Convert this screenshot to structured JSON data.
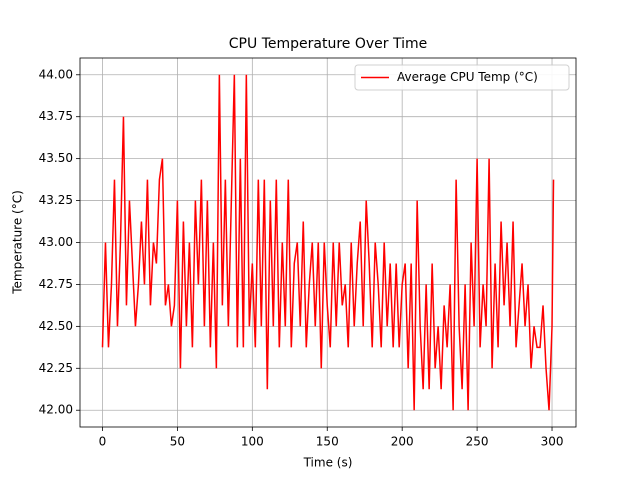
{
  "chart_data": {
    "type": "line",
    "title": "CPU Temperature Over Time",
    "xlabel": "Time (s)",
    "ylabel": "Temperature (°C)",
    "x": [
      0,
      2,
      4,
      6,
      8,
      10,
      12,
      14,
      16,
      18,
      20,
      22,
      24,
      26,
      28,
      30,
      32,
      34,
      36,
      38,
      40,
      42,
      44,
      46,
      48,
      50,
      52,
      54,
      56,
      58,
      60,
      62,
      64,
      66,
      68,
      70,
      72,
      74,
      76,
      78,
      80,
      82,
      84,
      86,
      88,
      90,
      92,
      94,
      96,
      98,
      100,
      102,
      104,
      106,
      108,
      110,
      112,
      114,
      116,
      118,
      120,
      122,
      124,
      126,
      128,
      130,
      132,
      134,
      136,
      138,
      140,
      142,
      144,
      146,
      148,
      150,
      152,
      154,
      156,
      158,
      160,
      162,
      164,
      166,
      168,
      170,
      172,
      174,
      176,
      178,
      180,
      182,
      184,
      186,
      188,
      190,
      192,
      194,
      196,
      198,
      200,
      202,
      204,
      206,
      208,
      210,
      212,
      214,
      216,
      218,
      220,
      222,
      224,
      226,
      228,
      230,
      232,
      234,
      236,
      238,
      240,
      242,
      244,
      246,
      248,
      250,
      252,
      254,
      256,
      258,
      260,
      262,
      264,
      266,
      268,
      270,
      272,
      274,
      276,
      278,
      280,
      282,
      284,
      286,
      288,
      290,
      292,
      294,
      296,
      298,
      300,
      301
    ],
    "series": [
      {
        "name": "Average CPU Temp (°C)",
        "color": "#ff0000",
        "values": [
          42.375,
          43.0,
          42.375,
          42.75,
          43.375,
          42.5,
          43.0,
          43.75,
          42.625,
          43.25,
          42.875,
          42.5,
          42.75,
          43.125,
          42.75,
          43.375,
          42.625,
          43.0,
          42.875,
          43.375,
          43.5,
          42.625,
          42.75,
          42.5,
          42.625,
          43.25,
          42.25,
          43.125,
          42.5,
          43.0,
          42.375,
          43.25,
          42.75,
          43.375,
          42.5,
          43.25,
          42.375,
          43.0,
          42.25,
          44.0,
          42.625,
          43.375,
          42.5,
          43.25,
          44.0,
          42.375,
          43.5,
          42.375,
          44.0,
          42.5,
          42.875,
          42.375,
          43.375,
          42.5,
          43.375,
          42.125,
          43.25,
          42.5,
          43.375,
          42.375,
          43.0,
          42.5,
          43.375,
          42.375,
          42.875,
          43.0,
          42.5,
          43.125,
          42.375,
          42.75,
          43.0,
          42.5,
          43.0,
          42.25,
          43.0,
          42.625,
          42.375,
          43.0,
          42.5,
          43.0,
          42.625,
          42.75,
          42.375,
          43.0,
          42.5,
          42.875,
          43.125,
          42.5,
          43.25,
          42.875,
          42.375,
          43.0,
          42.75,
          42.375,
          43.0,
          42.5,
          42.875,
          42.375,
          42.875,
          42.375,
          42.75,
          42.875,
          42.25,
          42.875,
          42.0,
          43.25,
          42.5,
          42.125,
          42.75,
          42.125,
          42.875,
          42.25,
          42.5,
          42.125,
          42.625,
          42.375,
          42.75,
          42.0,
          43.375,
          42.5,
          42.125,
          42.75,
          42.0,
          43.0,
          42.5,
          43.5,
          42.375,
          42.75,
          42.5,
          43.5,
          42.25,
          42.875,
          42.375,
          43.125,
          42.625,
          43.0,
          42.5,
          43.125,
          42.375,
          42.625,
          42.875,
          42.5,
          42.75,
          42.25,
          42.5,
          42.375,
          42.375,
          42.625,
          42.25,
          42.0,
          42.5,
          43.375
        ]
      }
    ],
    "xlim": [
      -15,
      316
    ],
    "xticks": [
      0,
      50,
      100,
      150,
      200,
      250,
      300
    ],
    "ylim": [
      41.9,
      44.1
    ],
    "yticks": [
      {
        "value": 42.0,
        "label": "42.00"
      },
      {
        "value": 42.25,
        "label": "42.25"
      },
      {
        "value": 42.5,
        "label": "42.50"
      },
      {
        "value": 42.75,
        "label": "42.75"
      },
      {
        "value": 43.0,
        "label": "43.00"
      },
      {
        "value": 43.25,
        "label": "43.25"
      },
      {
        "value": 43.5,
        "label": "43.50"
      },
      {
        "value": 43.75,
        "label": "43.75"
      },
      {
        "value": 44.0,
        "label": "44.00"
      }
    ],
    "grid": true,
    "legend": "upper right"
  }
}
